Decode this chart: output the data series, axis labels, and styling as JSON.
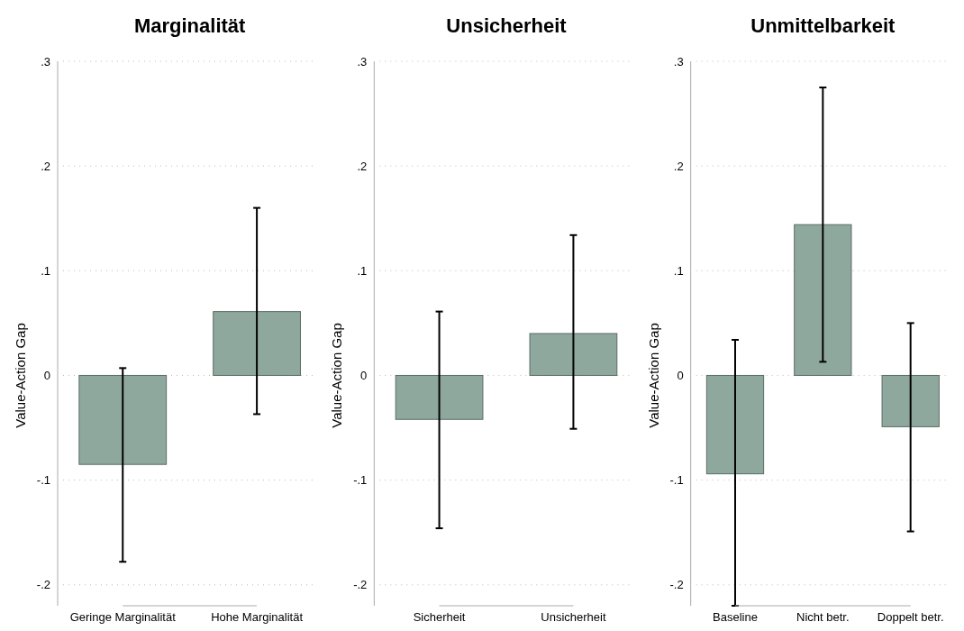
{
  "chart_data": [
    {
      "type": "bar",
      "title": "Marginalität",
      "ylabel": "Value-Action Gap",
      "categories": [
        "Geringe Marginalität",
        "Hohe Marginalität"
      ],
      "values": [
        -0.085,
        0.061
      ],
      "errors": [
        [
          -0.178,
          0.007
        ],
        [
          -0.037,
          0.16
        ]
      ],
      "color": "#8fa89e",
      "ylim": [
        -0.22,
        0.3
      ],
      "yticks": [
        {
          "value": -0.2,
          "label": "-.2"
        },
        {
          "value": -0.1,
          "label": "-.1"
        },
        {
          "value": 0,
          "label": "0"
        },
        {
          "value": 0.1,
          "label": ".1"
        },
        {
          "value": 0.2,
          "label": ".2"
        },
        {
          "value": 0.3,
          "label": ".3"
        }
      ],
      "grid": "y"
    },
    {
      "type": "bar",
      "title": "Unsicherheit",
      "ylabel": "Value-Action Gap",
      "categories": [
        "Sicherheit",
        "Unsicherheit"
      ],
      "values": [
        -0.042,
        0.04
      ],
      "errors": [
        [
          -0.146,
          0.061
        ],
        [
          -0.051,
          0.134
        ]
      ],
      "color": "#8fa89e",
      "ylim": [
        -0.22,
        0.3
      ],
      "yticks": [
        {
          "value": -0.2,
          "label": "-.2"
        },
        {
          "value": -0.1,
          "label": "-.1"
        },
        {
          "value": 0,
          "label": "0"
        },
        {
          "value": 0.1,
          "label": ".1"
        },
        {
          "value": 0.2,
          "label": ".2"
        },
        {
          "value": 0.3,
          "label": ".3"
        }
      ],
      "grid": "y"
    },
    {
      "type": "bar",
      "title": "Unmittelbarkeit",
      "ylabel": "Value-Action Gap",
      "categories": [
        "Baseline",
        "Nicht betr.",
        "Doppelt betr."
      ],
      "values": [
        -0.094,
        0.144,
        -0.049
      ],
      "errors": [
        [
          -0.22,
          0.034
        ],
        [
          0.013,
          0.275
        ],
        [
          -0.149,
          0.05
        ]
      ],
      "color": "#8fa89e",
      "ylim": [
        -0.22,
        0.3
      ],
      "yticks": [
        {
          "value": -0.2,
          "label": "-.2"
        },
        {
          "value": -0.1,
          "label": "-.1"
        },
        {
          "value": 0,
          "label": "0"
        },
        {
          "value": 0.1,
          "label": ".1"
        },
        {
          "value": 0.2,
          "label": ".2"
        },
        {
          "value": 0.3,
          "label": ".3"
        }
      ],
      "grid": "y"
    }
  ]
}
